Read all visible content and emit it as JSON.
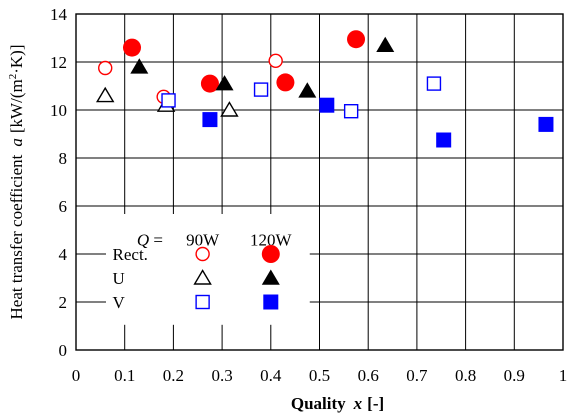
{
  "chart_data": {
    "type": "scatter",
    "xlabel": "Quality",
    "xlabel_symbol": "x",
    "xlabel_unit": "[-]",
    "ylabel": "Heat transfer coefficient",
    "ylabel_symbol": "a",
    "ylabel_unit_pre": "[kW/(m",
    "ylabel_unit_sup": "2",
    "ylabel_unit_post": "·K)]",
    "xlim": [
      0,
      1
    ],
    "ylim": [
      0,
      14
    ],
    "xticks": [
      "0",
      "0.1",
      "0.2",
      "0.3",
      "0.4",
      "0.5",
      "0.6",
      "0.7",
      "0.8",
      "0.9",
      "1"
    ],
    "yticks": [
      "0",
      "2",
      "4",
      "6",
      "8",
      "10",
      "12",
      "14"
    ],
    "grid": true,
    "legend": {
      "position": "bottom-left",
      "q_symbol": "Q",
      "q_eq": " =",
      "columns": [
        "90W",
        "120W"
      ],
      "rows": [
        "Rect.",
        "U",
        "V"
      ]
    },
    "colors": {
      "rect": "#ff0000",
      "u": "#000000",
      "v": "#0000ff"
    },
    "series": [
      {
        "name": "Rect. 90W",
        "marker": "circle-open",
        "color": "#ff0000",
        "points": [
          [
            0.06,
            11.75
          ],
          [
            0.18,
            10.55
          ],
          [
            0.41,
            12.05
          ]
        ]
      },
      {
        "name": "Rect. 120W",
        "marker": "circle-filled",
        "color": "#ff0000",
        "points": [
          [
            0.115,
            12.6
          ],
          [
            0.275,
            11.1
          ],
          [
            0.43,
            11.15
          ],
          [
            0.575,
            12.95
          ]
        ]
      },
      {
        "name": "U 90W",
        "marker": "triangle-open",
        "color": "#000000",
        "points": [
          [
            0.06,
            10.6
          ],
          [
            0.185,
            10.2
          ],
          [
            0.315,
            10.0
          ]
        ]
      },
      {
        "name": "U 120W",
        "marker": "triangle-filled",
        "color": "#000000",
        "points": [
          [
            0.13,
            11.8
          ],
          [
            0.305,
            11.1
          ],
          [
            0.475,
            10.8
          ],
          [
            0.635,
            12.7
          ]
        ]
      },
      {
        "name": "V 90W",
        "marker": "square-open",
        "color": "#0000ff",
        "points": [
          [
            0.19,
            10.4
          ],
          [
            0.38,
            10.85
          ],
          [
            0.565,
            9.95
          ],
          [
            0.735,
            11.1
          ]
        ]
      },
      {
        "name": "V 120W",
        "marker": "square-filled",
        "color": "#0000ff",
        "points": [
          [
            0.275,
            9.6
          ],
          [
            0.515,
            10.2
          ],
          [
            0.755,
            8.75
          ],
          [
            0.965,
            9.4
          ]
        ]
      }
    ]
  }
}
